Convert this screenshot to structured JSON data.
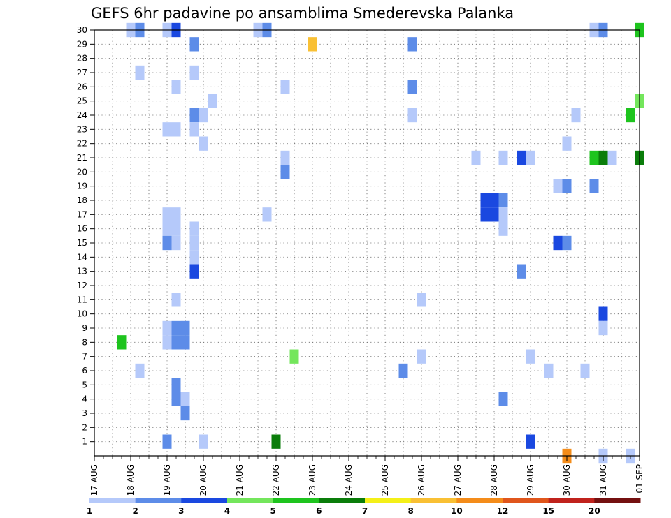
{
  "chart_data": {
    "type": "heatmap",
    "title": "GEFS 6hr padavine po ansamblima Smederevska Palanka",
    "xlabel": "",
    "ylabel": "",
    "x_tick_labels": [
      "17 AUG",
      "18 AUG",
      "19 AUG",
      "20 AUG",
      "21 AUG",
      "22 AUG",
      "23 AUG",
      "24 AUG",
      "25 AUG",
      "26 AUG",
      "27 AUG",
      "28 AUG",
      "29 AUG",
      "30 AUG",
      "31 AUG",
      "01 SEP"
    ],
    "xlim_days": [
      0,
      15
    ],
    "y_tick_labels": [
      "1",
      "2",
      "3",
      "4",
      "5",
      "6",
      "7",
      "8",
      "9",
      "10",
      "11",
      "12",
      "13",
      "14",
      "15",
      "16",
      "17",
      "18",
      "19",
      "20",
      "21",
      "22",
      "23",
      "24",
      "25",
      "26",
      "27",
      "28",
      "29",
      "30"
    ],
    "ylim": [
      0,
      30
    ],
    "grid": true,
    "colorbar": {
      "levels": [
        1,
        2,
        3,
        4,
        5,
        6,
        7,
        8,
        10,
        12,
        15,
        20
      ],
      "tick_labels": [
        "1",
        "2",
        "3",
        "4",
        "5",
        "6",
        "7",
        "8",
        "10",
        "12",
        "15",
        "20"
      ],
      "colors": [
        "#b5c9fa",
        "#5d8ce8",
        "#1a48e0",
        "#74e65c",
        "#1ec41e",
        "#0a7d0a",
        "#f4f018",
        "#f9c034",
        "#f48c1a",
        "#e0561c",
        "#c0221c",
        "#741010"
      ]
    },
    "cells": [
      {
        "x": 1.0,
        "y": 30,
        "c": 0
      },
      {
        "x": 1.25,
        "y": 30,
        "c": 1
      },
      {
        "x": 2.0,
        "y": 30,
        "c": 0
      },
      {
        "x": 2.25,
        "y": 30,
        "c": 2
      },
      {
        "x": 4.5,
        "y": 30,
        "c": 0
      },
      {
        "x": 4.75,
        "y": 30,
        "c": 1
      },
      {
        "x": 13.75,
        "y": 30,
        "c": 0
      },
      {
        "x": 14.0,
        "y": 30,
        "c": 1
      },
      {
        "x": 15.0,
        "y": 30,
        "c": 4
      },
      {
        "x": 2.75,
        "y": 29,
        "c": 1
      },
      {
        "x": 6.0,
        "y": 29,
        "c": 7
      },
      {
        "x": 8.75,
        "y": 29,
        "c": 1
      },
      {
        "x": 1.25,
        "y": 27,
        "c": 0
      },
      {
        "x": 2.75,
        "y": 27,
        "c": 0
      },
      {
        "x": 2.25,
        "y": 26,
        "c": 0
      },
      {
        "x": 5.25,
        "y": 26,
        "c": 0
      },
      {
        "x": 8.75,
        "y": 26,
        "c": 1
      },
      {
        "x": 3.25,
        "y": 25,
        "c": 0
      },
      {
        "x": 15.0,
        "y": 25,
        "c": 3
      },
      {
        "x": 2.75,
        "y": 24,
        "c": 1
      },
      {
        "x": 3.0,
        "y": 24,
        "c": 0
      },
      {
        "x": 8.75,
        "y": 24,
        "c": 0
      },
      {
        "x": 13.25,
        "y": 24,
        "c": 0
      },
      {
        "x": 14.75,
        "y": 24,
        "c": 4
      },
      {
        "x": 2.0,
        "y": 23,
        "c": 0
      },
      {
        "x": 2.25,
        "y": 23,
        "c": 0
      },
      {
        "x": 2.75,
        "y": 23,
        "c": 0
      },
      {
        "x": 3.0,
        "y": 22,
        "c": 0
      },
      {
        "x": 13.0,
        "y": 22,
        "c": 0
      },
      {
        "x": 5.25,
        "y": 21,
        "c": 0
      },
      {
        "x": 10.5,
        "y": 21,
        "c": 0
      },
      {
        "x": 11.25,
        "y": 21,
        "c": 0
      },
      {
        "x": 11.75,
        "y": 21,
        "c": 2
      },
      {
        "x": 12.0,
        "y": 21,
        "c": 0
      },
      {
        "x": 13.75,
        "y": 21,
        "c": 4
      },
      {
        "x": 14.0,
        "y": 21,
        "c": 5
      },
      {
        "x": 14.25,
        "y": 21,
        "c": 0
      },
      {
        "x": 15.0,
        "y": 21,
        "c": 5
      },
      {
        "x": 5.25,
        "y": 20,
        "c": 1
      },
      {
        "x": 12.75,
        "y": 19,
        "c": 0
      },
      {
        "x": 13.0,
        "y": 19,
        "c": 1
      },
      {
        "x": 13.75,
        "y": 19,
        "c": 1
      },
      {
        "x": 10.75,
        "y": 18,
        "c": 2
      },
      {
        "x": 11.0,
        "y": 18,
        "c": 2
      },
      {
        "x": 11.25,
        "y": 18,
        "c": 1
      },
      {
        "x": 10.75,
        "y": 17,
        "c": 2
      },
      {
        "x": 11.0,
        "y": 17,
        "c": 2
      },
      {
        "x": 2.0,
        "y": 17,
        "c": 0
      },
      {
        "x": 2.25,
        "y": 17,
        "c": 0
      },
      {
        "x": 4.75,
        "y": 17,
        "c": 0
      },
      {
        "x": 11.25,
        "y": 17,
        "c": 0
      },
      {
        "x": 2.0,
        "y": 16,
        "c": 0
      },
      {
        "x": 2.25,
        "y": 16,
        "c": 0
      },
      {
        "x": 2.75,
        "y": 16,
        "c": 0
      },
      {
        "x": 11.25,
        "y": 16,
        "c": 0
      },
      {
        "x": 2.0,
        "y": 15,
        "c": 1
      },
      {
        "x": 2.25,
        "y": 15,
        "c": 0
      },
      {
        "x": 2.75,
        "y": 15,
        "c": 0
      },
      {
        "x": 12.75,
        "y": 15,
        "c": 2
      },
      {
        "x": 13.0,
        "y": 15,
        "c": 1
      },
      {
        "x": 2.75,
        "y": 14,
        "c": 0
      },
      {
        "x": 2.75,
        "y": 13,
        "c": 2
      },
      {
        "x": 11.75,
        "y": 13,
        "c": 1
      },
      {
        "x": 2.25,
        "y": 11,
        "c": 0
      },
      {
        "x": 9.0,
        "y": 11,
        "c": 0
      },
      {
        "x": 14.0,
        "y": 10,
        "c": 2
      },
      {
        "x": 2.0,
        "y": 9,
        "c": 0
      },
      {
        "x": 2.25,
        "y": 9,
        "c": 1
      },
      {
        "x": 2.5,
        "y": 9,
        "c": 0
      },
      {
        "x": 2.5,
        "y": 9,
        "c": 1
      },
      {
        "x": 14.0,
        "y": 9,
        "c": 0
      },
      {
        "x": 2.0,
        "y": 8,
        "c": 0
      },
      {
        "x": 2.25,
        "y": 8,
        "c": 1
      },
      {
        "x": 0.75,
        "y": 8,
        "c": 4
      },
      {
        "x": 2.5,
        "y": 8,
        "c": 1
      },
      {
        "x": 5.5,
        "y": 7,
        "c": 3
      },
      {
        "x": 9.0,
        "y": 7,
        "c": 0
      },
      {
        "x": 12.0,
        "y": 7,
        "c": 0
      },
      {
        "x": 1.25,
        "y": 6,
        "c": 0
      },
      {
        "x": 8.5,
        "y": 6,
        "c": 1
      },
      {
        "x": 12.5,
        "y": 6,
        "c": 0
      },
      {
        "x": 13.5,
        "y": 6,
        "c": 0
      },
      {
        "x": 2.25,
        "y": 5,
        "c": 1
      },
      {
        "x": 2.25,
        "y": 4,
        "c": 1
      },
      {
        "x": 2.5,
        "y": 4,
        "c": 0
      },
      {
        "x": 11.25,
        "y": 4,
        "c": 1
      },
      {
        "x": 2.5,
        "y": 3,
        "c": 1
      },
      {
        "x": 2.0,
        "y": 1,
        "c": 1
      },
      {
        "x": 3.0,
        "y": 1,
        "c": 0
      },
      {
        "x": 5.0,
        "y": 1,
        "c": 5
      },
      {
        "x": 12.0,
        "y": 1,
        "c": 2
      },
      {
        "x": 13.0,
        "y": 0,
        "c": 8
      },
      {
        "x": 14.0,
        "y": 0,
        "c": 0
      },
      {
        "x": 14.75,
        "y": 0,
        "c": 0
      }
    ]
  }
}
